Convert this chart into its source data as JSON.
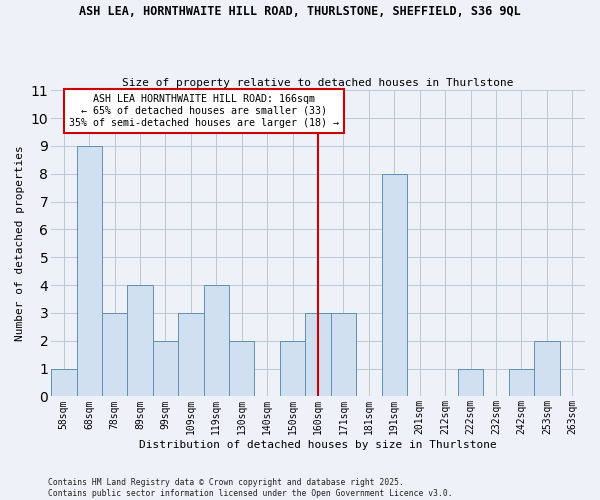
{
  "title1": "ASH LEA, HORNTHWAITE HILL ROAD, THURLSTONE, SHEFFIELD, S36 9QL",
  "title2": "Size of property relative to detached houses in Thurlstone",
  "xlabel": "Distribution of detached houses by size in Thurlstone",
  "ylabel": "Number of detached properties",
  "categories": [
    "58sqm",
    "68sqm",
    "78sqm",
    "89sqm",
    "99sqm",
    "109sqm",
    "119sqm",
    "130sqm",
    "140sqm",
    "150sqm",
    "160sqm",
    "171sqm",
    "181sqm",
    "191sqm",
    "201sqm",
    "212sqm",
    "222sqm",
    "232sqm",
    "242sqm",
    "253sqm",
    "263sqm"
  ],
  "values": [
    1,
    9,
    3,
    4,
    2,
    3,
    4,
    2,
    0,
    2,
    3,
    3,
    0,
    8,
    0,
    0,
    1,
    0,
    1,
    2,
    0
  ],
  "bar_color": "#d0e0f0",
  "bar_edge_color": "#6090b0",
  "bar_edge_width": 0.7,
  "grid_color": "#b8c8d8",
  "background_color": "#eef2f8",
  "vline_x_index": 10,
  "vline_color": "#cc0000",
  "annotation_line1": "ASH LEA HORNTHWAITE HILL ROAD: 166sqm",
  "annotation_line2": "← 65% of detached houses are smaller (33)",
  "annotation_line3": "35% of semi-detached houses are larger (18) →",
  "annotation_box_color": "#ffffff",
  "annotation_box_edge": "#cc0000",
  "footer": "Contains HM Land Registry data © Crown copyright and database right 2025.\nContains public sector information licensed under the Open Government Licence v3.0.",
  "ylim": [
    0,
    11
  ],
  "yticks": [
    0,
    1,
    2,
    3,
    4,
    5,
    6,
    7,
    8,
    9,
    10,
    11
  ]
}
